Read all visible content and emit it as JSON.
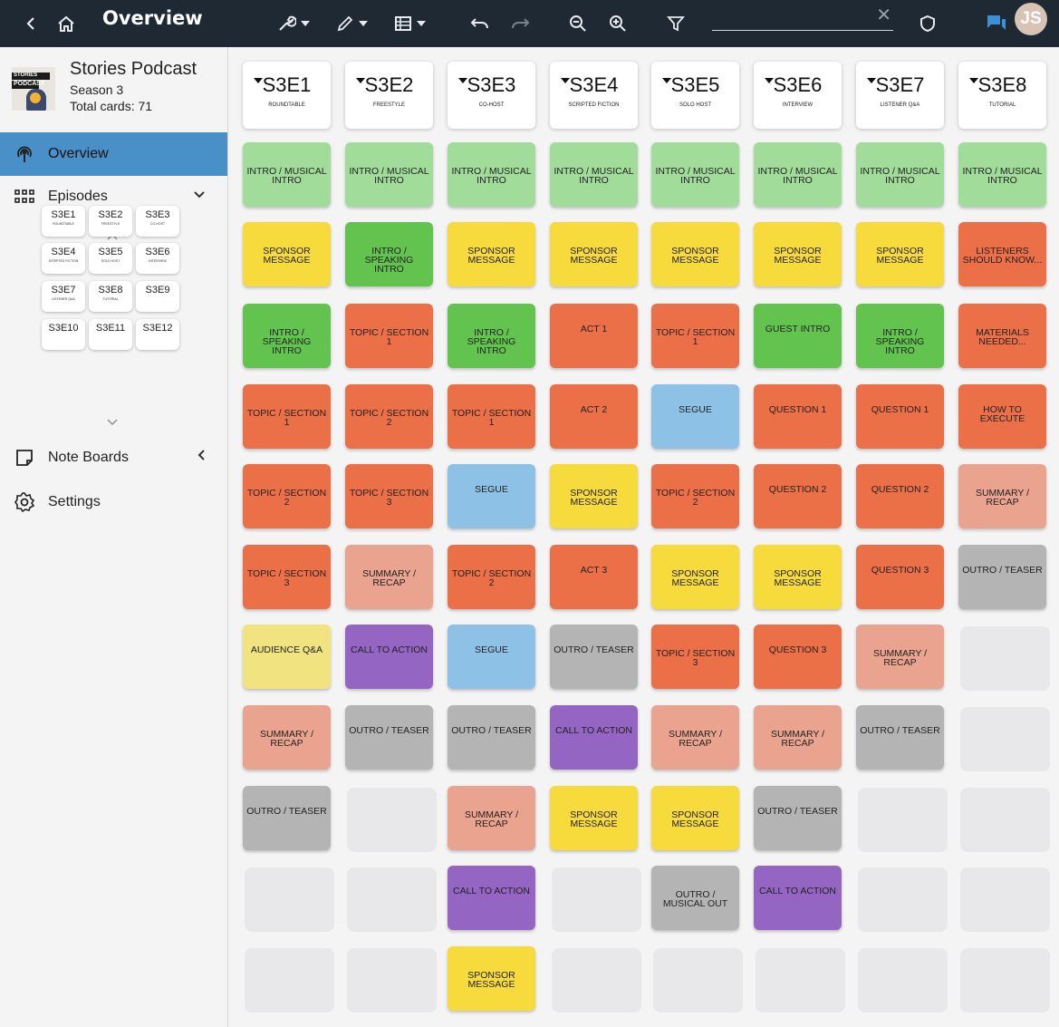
{
  "topbar": {
    "title": "Overview",
    "search": {
      "value": "",
      "placeholder": ""
    },
    "avatar_initials": "JS",
    "icons": [
      "back-icon",
      "home-icon",
      "wrench-icon",
      "pencil-icon",
      "list-icon",
      "undo-icon",
      "redo-icon",
      "zoom-out-icon",
      "zoom-in-icon",
      "filter-icon",
      "shield-icon",
      "chat-icon"
    ]
  },
  "sidebar": {
    "podcast_title": "Stories Podcast",
    "logo_line1": "STORIES",
    "logo_line2": "PODCAST",
    "season": "Season 3",
    "total_cards": "Total cards: 71",
    "nav": {
      "overview": "Overview",
      "episodes": "Episodes",
      "note_boards": "Note Boards",
      "settings": "Settings"
    },
    "mini_episodes": [
      {
        "code": "S3E1",
        "sub": "ROUNDTABLE"
      },
      {
        "code": "S3E2",
        "sub": "FREESTYLE"
      },
      {
        "code": "S3E3",
        "sub": "CO-HOST"
      },
      {
        "code": "S3E4",
        "sub": "SCRIPTED FICTION"
      },
      {
        "code": "S3E5",
        "sub": "SOLO HOST"
      },
      {
        "code": "S3E6",
        "sub": "INTERVIEW"
      },
      {
        "code": "S3E7",
        "sub": "LISTENER Q&A"
      },
      {
        "code": "S3E8",
        "sub": "TUTORIAL"
      },
      {
        "code": "S3E9",
        "sub": ""
      },
      {
        "code": "S3E10",
        "sub": ""
      },
      {
        "code": "S3E11",
        "sub": ""
      },
      {
        "code": "S3E12",
        "sub": ""
      }
    ]
  },
  "colors": {
    "light_green": "#a1dc9a",
    "green": "#62c34f",
    "yellow": "#f7da3c",
    "orange": "#eb6f47",
    "blue": "#8dc1e6",
    "salmon": "#eaa38f",
    "gray": "#b4b4b4",
    "purple": "#9565c3",
    "pale_yellow": "#f1e380"
  },
  "board": {
    "columns": [
      {
        "code": "S3E1",
        "sub": "ROUNDTABLE",
        "cards": [
          {
            "label": "INTRO / MUSICAL INTRO",
            "color": "light_green"
          },
          {
            "label": "SPONSOR MESSAGE",
            "color": "yellow"
          },
          {
            "label": "INTRO / SPEAKING INTRO",
            "color": "green"
          },
          {
            "label": "TOPIC / SECTION 1",
            "color": "orange"
          },
          {
            "label": "TOPIC / SECTION 2",
            "color": "orange"
          },
          {
            "label": "TOPIC / SECTION 3",
            "color": "orange"
          },
          {
            "label": "AUDIENCE Q&A",
            "color": "pale_yellow"
          },
          {
            "label": "SUMMARY / RECAP",
            "color": "salmon"
          },
          {
            "label": "OUTRO / TEASER",
            "color": "gray"
          }
        ]
      },
      {
        "code": "S3E2",
        "sub": "FREESTYLE",
        "cards": [
          {
            "label": "INTRO / MUSICAL INTRO",
            "color": "light_green"
          },
          {
            "label": "INTRO / SPEAKING INTRO",
            "color": "green"
          },
          {
            "label": "TOPIC / SECTION 1",
            "color": "orange"
          },
          {
            "label": "TOPIC / SECTION 2",
            "color": "orange"
          },
          {
            "label": "TOPIC / SECTION 3",
            "color": "orange"
          },
          {
            "label": "SUMMARY / RECAP",
            "color": "salmon"
          },
          {
            "label": "CALL TO ACTION",
            "color": "purple"
          },
          {
            "label": "OUTRO / TEASER",
            "color": "gray"
          }
        ]
      },
      {
        "code": "S3E3",
        "sub": "CO-HOST",
        "cards": [
          {
            "label": "INTRO / MUSICAL INTRO",
            "color": "light_green"
          },
          {
            "label": "SPONSOR MESSAGE",
            "color": "yellow"
          },
          {
            "label": "INTRO / SPEAKING INTRO",
            "color": "green"
          },
          {
            "label": "TOPIC / SECTION 1",
            "color": "orange"
          },
          {
            "label": "SEGUE",
            "color": "blue"
          },
          {
            "label": "TOPIC / SECTION 2",
            "color": "orange"
          },
          {
            "label": "SEGUE",
            "color": "blue"
          },
          {
            "label": "OUTRO / TEASER",
            "color": "gray"
          },
          {
            "label": "SUMMARY / RECAP",
            "color": "salmon"
          },
          {
            "label": "CALL TO ACTION",
            "color": "purple"
          },
          {
            "label": "SPONSOR MESSAGE",
            "color": "yellow"
          }
        ]
      },
      {
        "code": "S3E4",
        "sub": "SCRIPTED FICTION",
        "cards": [
          {
            "label": "INTRO / MUSICAL INTRO",
            "color": "light_green"
          },
          {
            "label": "SPONSOR MESSAGE",
            "color": "yellow"
          },
          {
            "label": "ACT 1",
            "color": "orange"
          },
          {
            "label": "ACT 2",
            "color": "orange"
          },
          {
            "label": "SPONSOR MESSAGE",
            "color": "yellow"
          },
          {
            "label": "ACT 3",
            "color": "orange"
          },
          {
            "label": "OUTRO / TEASER",
            "color": "gray"
          },
          {
            "label": "CALL TO ACTION",
            "color": "purple"
          },
          {
            "label": "SPONSOR MESSAGE",
            "color": "yellow"
          }
        ]
      },
      {
        "code": "S3E5",
        "sub": "SOLO HOST",
        "cards": [
          {
            "label": "INTRO / MUSICAL INTRO",
            "color": "light_green"
          },
          {
            "label": "SPONSOR MESSAGE",
            "color": "yellow"
          },
          {
            "label": "TOPIC / SECTION 1",
            "color": "orange"
          },
          {
            "label": "SEGUE",
            "color": "blue"
          },
          {
            "label": "TOPIC / SECTION 2",
            "color": "orange"
          },
          {
            "label": "SPONSOR MESSAGE",
            "color": "yellow"
          },
          {
            "label": "TOPIC / SECTION 3",
            "color": "orange"
          },
          {
            "label": "SUMMARY / RECAP",
            "color": "salmon"
          },
          {
            "label": "SPONSOR MESSAGE",
            "color": "yellow"
          },
          {
            "label": "OUTRO / MUSICAL OUT",
            "color": "gray"
          }
        ]
      },
      {
        "code": "S3E6",
        "sub": "INTERVIEW",
        "cards": [
          {
            "label": "INTRO / MUSICAL INTRO",
            "color": "light_green"
          },
          {
            "label": "SPONSOR MESSAGE",
            "color": "yellow"
          },
          {
            "label": "GUEST INTRO",
            "color": "green"
          },
          {
            "label": "QUESTION 1",
            "color": "orange"
          },
          {
            "label": "QUESTION 2",
            "color": "orange"
          },
          {
            "label": "SPONSOR MESSAGE",
            "color": "yellow"
          },
          {
            "label": "QUESTION 3",
            "color": "orange"
          },
          {
            "label": "SUMMARY / RECAP",
            "color": "salmon"
          },
          {
            "label": "OUTRO / TEASER",
            "color": "gray"
          },
          {
            "label": "CALL TO ACTION",
            "color": "purple"
          }
        ]
      },
      {
        "code": "S3E7",
        "sub": "LISTENER Q&A",
        "cards": [
          {
            "label": "INTRO / MUSICAL INTRO",
            "color": "light_green"
          },
          {
            "label": "SPONSOR MESSAGE",
            "color": "yellow"
          },
          {
            "label": "INTRO / SPEAKING INTRO",
            "color": "green"
          },
          {
            "label": "QUESTION 1",
            "color": "orange"
          },
          {
            "label": "QUESTION 2",
            "color": "orange"
          },
          {
            "label": "QUESTION 3",
            "color": "orange"
          },
          {
            "label": "SUMMARY / RECAP",
            "color": "salmon"
          },
          {
            "label": "OUTRO / TEASER",
            "color": "gray"
          }
        ]
      },
      {
        "code": "S3E8",
        "sub": "TUTORIAL",
        "cards": [
          {
            "label": "INTRO / MUSICAL INTRO",
            "color": "light_green"
          },
          {
            "label": "LISTENERS SHOULD KNOW...",
            "color": "orange"
          },
          {
            "label": "MATERIALS NEEDED...",
            "color": "orange"
          },
          {
            "label": "HOW TO EXECUTE",
            "color": "orange"
          },
          {
            "label": "SUMMARY / RECAP",
            "color": "salmon"
          },
          {
            "label": "OUTRO / TEASER",
            "color": "gray"
          }
        ]
      }
    ]
  }
}
